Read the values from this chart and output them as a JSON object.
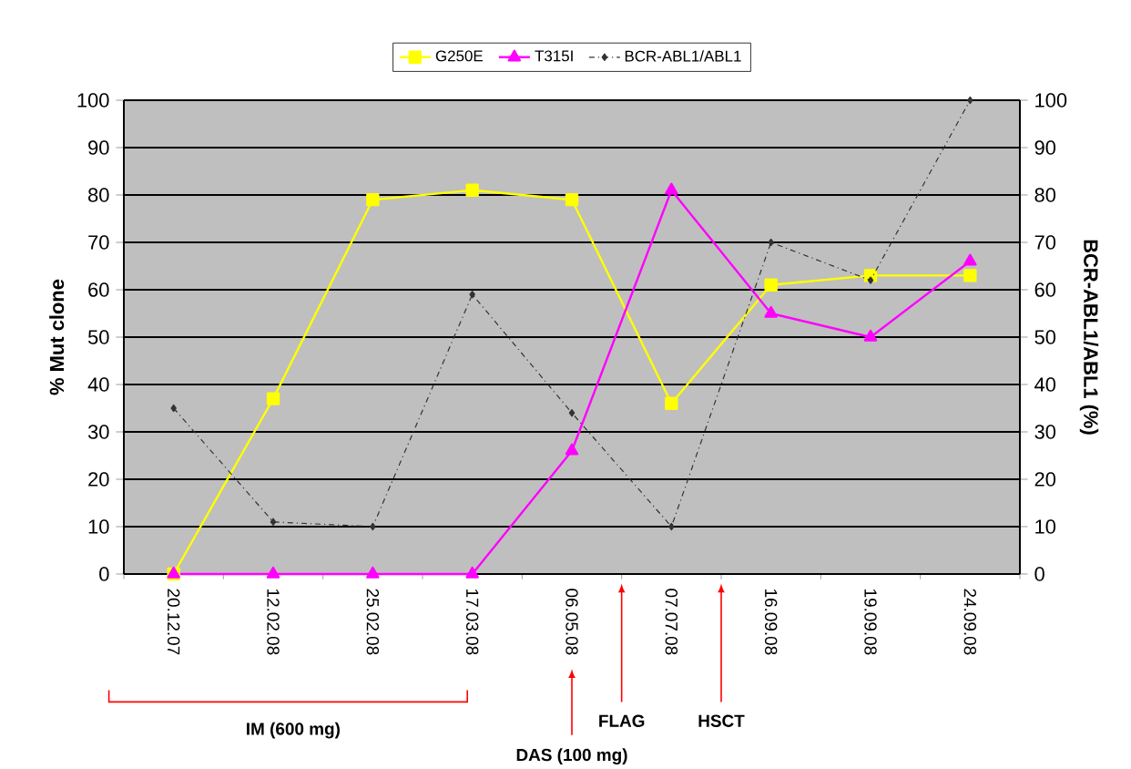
{
  "chart_data": {
    "type": "line",
    "ylabel": "% Mut clone",
    "y2label": "BCR-ABL1/ABL1 (%)",
    "categories": [
      "20.12.07",
      "12.02.08",
      "25.02.08",
      "17.03.08",
      "06.05.08",
      "07.07.08",
      "16.09.08",
      "19.09.08",
      "24.09.08"
    ],
    "series": [
      {
        "name": "G250E",
        "color": "#ffff00",
        "marker": "square",
        "line_style": "solid",
        "values": [
          0,
          37,
          79,
          81,
          79,
          36,
          61,
          63,
          63
        ]
      },
      {
        "name": "T315I",
        "color": "#ff00ff",
        "marker": "triangle",
        "line_style": "solid",
        "values": [
          0,
          0,
          0,
          0,
          26,
          81,
          55,
          50,
          66
        ]
      },
      {
        "name": "BCR-ABL1/ABL1",
        "color": "#333333",
        "marker": "diamond",
        "line_style": "dashed",
        "axis": "y2",
        "values": [
          35,
          11,
          10,
          59,
          34,
          10,
          70,
          62,
          100
        ]
      }
    ],
    "ylim": [
      0,
      100
    ],
    "yticks": [
      0,
      10,
      20,
      30,
      40,
      50,
      60,
      70,
      80,
      90,
      100
    ],
    "y2lim": [
      0,
      100
    ],
    "y2ticks": [
      0,
      10,
      20,
      30,
      40,
      50,
      60,
      70,
      80,
      90,
      100
    ],
    "grid": "y",
    "legend": "top",
    "annotations": [
      "IM (600 mg)",
      "DAS (100 mg)",
      "FLAG",
      "HSCT"
    ]
  }
}
